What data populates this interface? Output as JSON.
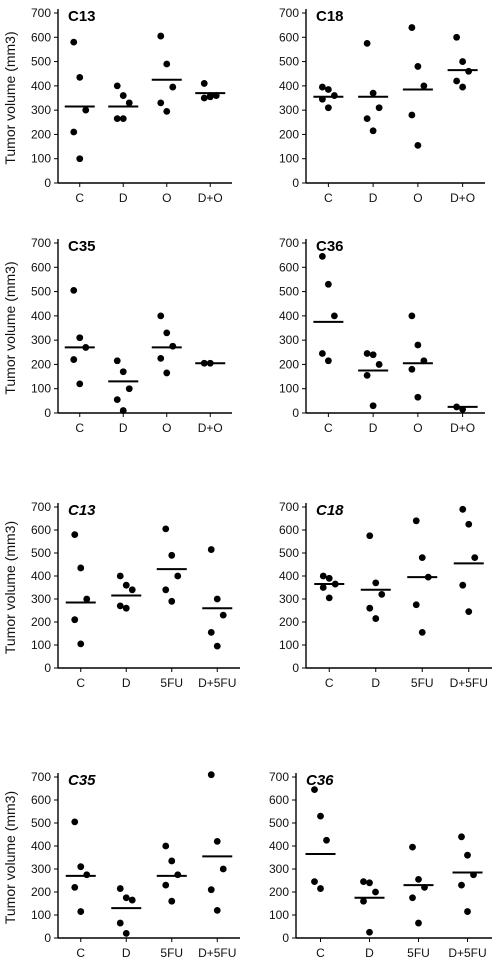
{
  "chart_data": [
    {
      "type": "scatter",
      "title": "C13",
      "title_italic": false,
      "ylabel": "Tumor volume (mm3)",
      "ylim": [
        0,
        700
      ],
      "yticks": [
        "0",
        "100",
        "200",
        "300",
        "400",
        "500",
        "600",
        "700"
      ],
      "categories": [
        "C",
        "D",
        "O",
        "D+O"
      ],
      "points": [
        [
          580,
          435,
          300,
          210,
          100
        ],
        [
          400,
          360,
          330,
          265,
          265
        ],
        [
          605,
          490,
          395,
          330,
          295
        ],
        [
          410,
          360,
          360,
          350,
          355
        ]
      ],
      "means": [
        315,
        315,
        425,
        370
      ]
    },
    {
      "type": "scatter",
      "title": "C18",
      "title_italic": false,
      "ylabel": "",
      "ylim": [
        0,
        700
      ],
      "yticks": [
        "0",
        "100",
        "200",
        "300",
        "400",
        "500",
        "600",
        "700"
      ],
      "categories": [
        "C",
        "D",
        "O",
        "D+O"
      ],
      "points": [
        [
          395,
          385,
          360,
          345,
          310
        ],
        [
          575,
          370,
          310,
          265,
          215
        ],
        [
          640,
          480,
          400,
          280,
          155
        ],
        [
          600,
          500,
          460,
          420,
          395
        ]
      ],
      "means": [
        355,
        355,
        385,
        465
      ]
    },
    {
      "type": "scatter",
      "title": "C35",
      "title_italic": false,
      "ylabel": "Tumor volume (mm3)",
      "ylim": [
        0,
        700
      ],
      "yticks": [
        "0",
        "100",
        "200",
        "300",
        "400",
        "500",
        "600",
        "700"
      ],
      "categories": [
        "C",
        "D",
        "O",
        "D+O"
      ],
      "points": [
        [
          505,
          310,
          270,
          220,
          120
        ],
        [
          215,
          170,
          100,
          55,
          10
        ],
        [
          400,
          330,
          275,
          225,
          165
        ],
        [
          205,
          205
        ]
      ],
      "means": [
        270,
        130,
        270,
        205
      ]
    },
    {
      "type": "scatter",
      "title": "C36",
      "title_italic": false,
      "ylabel": "",
      "ylim": [
        0,
        700
      ],
      "yticks": [
        "0",
        "100",
        "200",
        "300",
        "400",
        "500",
        "600",
        "700"
      ],
      "categories": [
        "C",
        "D",
        "O",
        "D+O"
      ],
      "points": [
        [
          645,
          530,
          400,
          245,
          215
        ],
        [
          245,
          240,
          200,
          155,
          30
        ],
        [
          400,
          280,
          215,
          180,
          65
        ],
        [
          25,
          15
        ]
      ],
      "means": [
        375,
        175,
        205,
        25
      ]
    },
    {
      "type": "scatter",
      "title": "C13",
      "title_italic": true,
      "ylabel": "Tumor volume (mm3)",
      "ylim": [
        0,
        700
      ],
      "yticks": [
        "0",
        "100",
        "200",
        "300",
        "400",
        "500",
        "600",
        "700"
      ],
      "categories": [
        "C",
        "D",
        "5FU",
        "D+5FU"
      ],
      "points": [
        [
          580,
          435,
          300,
          210,
          105
        ],
        [
          400,
          360,
          340,
          270,
          260
        ],
        [
          605,
          490,
          400,
          340,
          290
        ],
        [
          515,
          300,
          230,
          155,
          95
        ]
      ],
      "means": [
        285,
        315,
        430,
        260
      ]
    },
    {
      "type": "scatter",
      "title": "C18",
      "title_italic": true,
      "ylabel": "",
      "ylim": [
        0,
        700
      ],
      "yticks": [
        "0",
        "100",
        "200",
        "300",
        "400",
        "500",
        "600",
        "700"
      ],
      "categories": [
        "C",
        "D",
        "5FU",
        "D+5FU"
      ],
      "points": [
        [
          400,
          390,
          365,
          350,
          305
        ],
        [
          575,
          370,
          320,
          260,
          215
        ],
        [
          640,
          480,
          395,
          275,
          155
        ],
        [
          690,
          625,
          480,
          360,
          245
        ]
      ],
      "means": [
        365,
        340,
        395,
        455
      ]
    },
    {
      "type": "scatter",
      "title": "C35",
      "title_italic": true,
      "ylabel": "Tumor volume (mm3)",
      "ylim": [
        0,
        700
      ],
      "yticks": [
        "0",
        "100",
        "200",
        "300",
        "400",
        "500",
        "600",
        "700"
      ],
      "categories": [
        "C",
        "D",
        "5FU",
        "D+5FU"
      ],
      "points": [
        [
          505,
          310,
          275,
          220,
          115
        ],
        [
          215,
          175,
          165,
          65,
          20
        ],
        [
          400,
          335,
          275,
          230,
          160
        ],
        [
          710,
          420,
          300,
          210,
          120
        ]
      ],
      "means": [
        270,
        130,
        270,
        355
      ]
    },
    {
      "type": "scatter",
      "title": "C36",
      "title_italic": true,
      "ylabel": "",
      "ylim": [
        0,
        700
      ],
      "yticks": [
        "0",
        "100",
        "200",
        "300",
        "400",
        "500",
        "600",
        "700"
      ],
      "categories": [
        "C",
        "D",
        "5FU",
        "D+5FU"
      ],
      "points": [
        [
          645,
          530,
          425,
          245,
          215
        ],
        [
          245,
          240,
          200,
          160,
          25
        ],
        [
          395,
          255,
          220,
          175,
          65
        ],
        [
          440,
          360,
          275,
          230,
          115
        ]
      ],
      "means": [
        365,
        175,
        230,
        285
      ]
    }
  ]
}
